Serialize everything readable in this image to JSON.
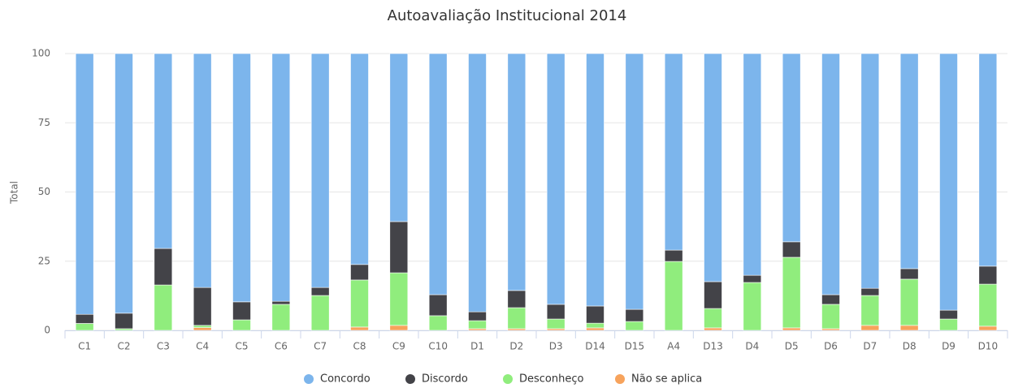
{
  "chart_data": {
    "type": "stacked_bar",
    "title": "Autoavaliação Institucional 2014",
    "y_label": "Total",
    "categories": [
      "C1",
      "C2",
      "C3",
      "C4",
      "C5",
      "C6",
      "C7",
      "C8",
      "C9",
      "C10",
      "D1",
      "D2",
      "D3",
      "D14",
      "D15",
      "A4",
      "D13",
      "D4",
      "D5",
      "D6",
      "D7",
      "D8",
      "D9",
      "D10"
    ],
    "series": [
      {
        "name": "Concordo",
        "color": "#7cb5ec",
        "values": [
          94.2,
          93.8,
          70.4,
          84.5,
          89.7,
          89.5,
          84.5,
          76.2,
          60.7,
          87.1,
          93.3,
          85.6,
          90.6,
          91.2,
          92.4,
          71.0,
          82.4,
          80.1,
          68.0,
          87.1,
          84.8,
          77.7,
          92.7,
          76.8
        ]
      },
      {
        "name": "Discordo",
        "color": "#434348",
        "values": [
          3.3,
          5.6,
          13.2,
          13.7,
          6.5,
          1.1,
          2.9,
          5.6,
          18.5,
          7.6,
          3.2,
          6.2,
          5.3,
          6.2,
          4.4,
          4.1,
          9.7,
          2.6,
          5.6,
          3.5,
          2.6,
          3.8,
          3.2,
          6.5
        ]
      },
      {
        "name": "Desconheço",
        "color": "#90ed7d",
        "values": [
          2.5,
          0.6,
          16.4,
          0.8,
          3.8,
          9.4,
          12.6,
          17.0,
          19.0,
          5.3,
          2.9,
          7.6,
          3.5,
          1.7,
          3.2,
          24.9,
          7.0,
          17.3,
          25.5,
          8.8,
          10.8,
          16.7,
          4.1,
          15.2
        ]
      },
      {
        "name": "Não se aplica",
        "color": "#f7a35c",
        "values": [
          0,
          0,
          0,
          1.0,
          0,
          0,
          0,
          1.2,
          1.8,
          0,
          0.6,
          0.6,
          0.6,
          0.9,
          0,
          0,
          0.9,
          0,
          0.9,
          0.6,
          1.8,
          1.8,
          0,
          1.5
        ]
      }
    ],
    "ylim": [
      0,
      100
    ],
    "yticks": [
      0,
      25,
      50,
      75,
      100
    ],
    "grid": true
  }
}
